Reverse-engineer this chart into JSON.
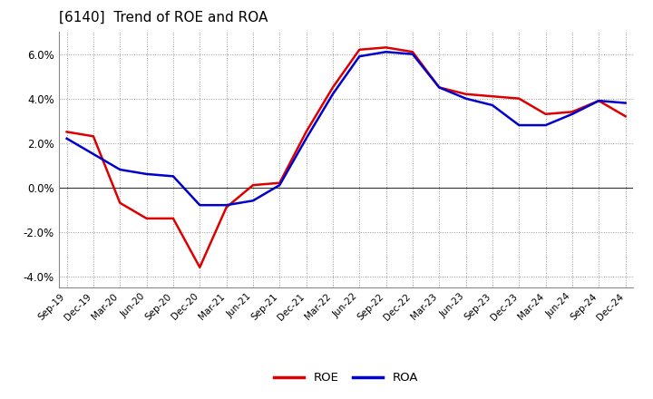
{
  "title": "[6140]  Trend of ROE and ROA",
  "title_fontsize": 11,
  "background_color": "#ffffff",
  "plot_background": "#ffffff",
  "grid_color": "#999999",
  "roe_color": "#dd0000",
  "roa_color": "#0000cc",
  "line_width": 1.8,
  "dates": [
    "Sep-19",
    "Dec-19",
    "Mar-20",
    "Jun-20",
    "Sep-20",
    "Dec-20",
    "Mar-21",
    "Jun-21",
    "Sep-21",
    "Dec-21",
    "Mar-22",
    "Jun-22",
    "Sep-22",
    "Dec-22",
    "Mar-23",
    "Jun-23",
    "Sep-23",
    "Dec-23",
    "Mar-24",
    "Jun-24",
    "Sep-24",
    "Dec-24"
  ],
  "roe": [
    2.5,
    2.3,
    -0.7,
    -1.4,
    -1.4,
    -3.6,
    -0.9,
    0.1,
    0.2,
    2.5,
    4.5,
    6.2,
    6.3,
    6.1,
    4.5,
    4.2,
    4.1,
    4.0,
    3.3,
    3.4,
    3.9,
    3.2
  ],
  "roa": [
    2.2,
    1.5,
    0.8,
    0.6,
    0.5,
    -0.8,
    -0.8,
    -0.6,
    0.1,
    2.2,
    4.2,
    5.9,
    6.1,
    6.0,
    4.5,
    4.0,
    3.7,
    2.8,
    2.8,
    3.3,
    3.9,
    3.8
  ],
  "ylim": [
    -4.5,
    7.0
  ],
  "yticks": [
    -4.0,
    -2.0,
    0.0,
    2.0,
    4.0,
    6.0
  ],
  "legend_labels": [
    "ROE",
    "ROA"
  ],
  "xlabel": "",
  "ylabel": ""
}
